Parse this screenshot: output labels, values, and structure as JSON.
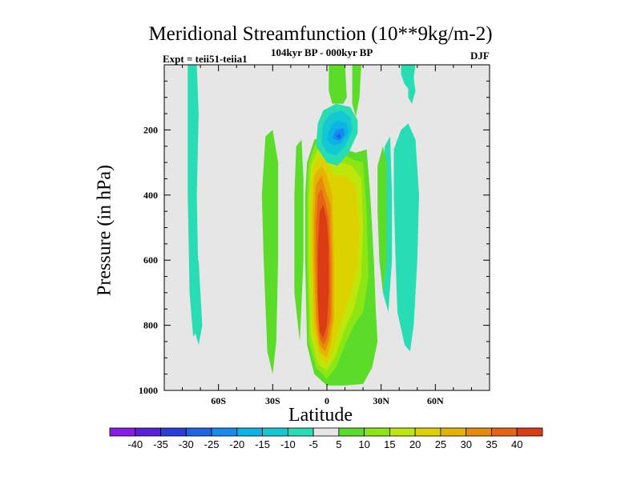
{
  "chart_data": {
    "type": "contour",
    "title": "Meridional Streamfunction (10**9kg/m-2)",
    "subtitle": "104kyr BP - 000kyr BP",
    "experiment": "Expt = teii51-teiia1",
    "season": "DJF",
    "xlabel": "Latitude",
    "ylabel": "Pressure (in hPa)",
    "xlim": [
      -90,
      90
    ],
    "ylim": [
      1000,
      0
    ],
    "x_ticks": [
      {
        "value": -60,
        "label": "60S"
      },
      {
        "value": -30,
        "label": "30S"
      },
      {
        "value": 0,
        "label": "0"
      },
      {
        "value": 30,
        "label": "30N"
      },
      {
        "value": 60,
        "label": "60N"
      }
    ],
    "y_ticks": [
      {
        "value": 200,
        "label": "200"
      },
      {
        "value": 400,
        "label": "400"
      },
      {
        "value": 600,
        "label": "600"
      },
      {
        "value": 800,
        "label": "800"
      },
      {
        "value": 1000,
        "label": "1000"
      }
    ],
    "background_color": "#e6e6e6",
    "colorbar": {
      "levels": [
        "-40",
        "-35",
        "-30",
        "-25",
        "-20",
        "-15",
        "-10",
        "-5",
        "5",
        "10",
        "15",
        "20",
        "25",
        "30",
        "35",
        "40"
      ],
      "colors": [
        "#8a18e6",
        "#5a1edc",
        "#2a3cdc",
        "#1e64e6",
        "#148cf0",
        "#0ab4e6",
        "#14c8d2",
        "#28dcb4",
        "#e6e6e6",
        "#5adc28",
        "#8ce614",
        "#bee60a",
        "#dcd200",
        "#e6b400",
        "#e68c0a",
        "#e66414",
        "#dc3c14"
      ]
    },
    "regions": [
      {
        "name": "southern-high-lat-negative-cell",
        "level": -10,
        "polygon": [
          [
            -77,
            0
          ],
          [
            -72,
            0
          ],
          [
            -71,
            150
          ],
          [
            -72,
            400
          ],
          [
            -71,
            700
          ],
          [
            -72,
            820
          ],
          [
            -74,
            835
          ],
          [
            -76,
            700
          ],
          [
            -77,
            400
          ]
        ]
      },
      {
        "name": "southern-high-lat-negative-tail",
        "level": -10,
        "polygon": [
          [
            -73,
            600
          ],
          [
            -71,
            600
          ],
          [
            -69,
            800
          ],
          [
            -71,
            860
          ],
          [
            -73,
            820
          ]
        ]
      },
      {
        "name": "southern-subtropic-positive-strip",
        "level": 5,
        "polygon": [
          [
            -34,
            220
          ],
          [
            -30,
            200
          ],
          [
            -27,
            300
          ],
          [
            -27,
            600
          ],
          [
            -28,
            850
          ],
          [
            -30,
            950
          ],
          [
            -33,
            880
          ],
          [
            -35,
            600
          ],
          [
            -36,
            400
          ]
        ]
      },
      {
        "name": "southern-subtropic-positive-strip-2",
        "level": 5,
        "polygon": [
          [
            -17,
            250
          ],
          [
            -14,
            230
          ],
          [
            -13,
            350
          ],
          [
            -13,
            600
          ],
          [
            -15,
            850
          ],
          [
            -18,
            700
          ],
          [
            -18,
            400
          ]
        ]
      },
      {
        "name": "hadley-cell",
        "level": 5,
        "polygon": [
          [
            -11,
            300
          ],
          [
            -7,
            230
          ],
          [
            -2,
            220
          ],
          [
            4,
            240
          ],
          [
            10,
            260
          ],
          [
            16,
            270
          ],
          [
            22,
            260
          ],
          [
            24,
            400
          ],
          [
            26,
            600
          ],
          [
            27,
            750
          ],
          [
            28,
            850
          ],
          [
            25,
            930
          ],
          [
            20,
            980
          ],
          [
            10,
            985
          ],
          [
            0,
            985
          ],
          [
            -7,
            950
          ],
          [
            -11,
            860
          ],
          [
            -12,
            600
          ],
          [
            -12,
            400
          ]
        ]
      },
      {
        "name": "hadley-cell",
        "level": 10,
        "polygon": [
          [
            -10,
            300
          ],
          [
            -6,
            240
          ],
          [
            -2,
            230
          ],
          [
            3,
            250
          ],
          [
            8,
            270
          ],
          [
            14,
            290
          ],
          [
            20,
            300
          ],
          [
            22,
            450
          ],
          [
            23,
            650
          ],
          [
            20,
            760
          ],
          [
            15,
            800
          ],
          [
            10,
            860
          ],
          [
            5,
            930
          ],
          [
            0,
            965
          ],
          [
            -6,
            930
          ],
          [
            -10,
            850
          ],
          [
            -11,
            600
          ],
          [
            -11,
            400
          ]
        ]
      },
      {
        "name": "hadley-cell",
        "level": 15,
        "polygon": [
          [
            -9,
            310
          ],
          [
            -5,
            260
          ],
          [
            -1,
            270
          ],
          [
            2,
            300
          ],
          [
            8,
            300
          ],
          [
            14,
            310
          ],
          [
            19,
            350
          ],
          [
            20,
            500
          ],
          [
            19,
            650
          ],
          [
            15,
            750
          ],
          [
            10,
            810
          ],
          [
            5,
            890
          ],
          [
            0,
            940
          ],
          [
            -5,
            920
          ],
          [
            -9,
            830
          ],
          [
            -10,
            600
          ],
          [
            -10,
            420
          ]
        ]
      },
      {
        "name": "hadley-cell",
        "level": 20,
        "polygon": [
          [
            -8,
            320
          ],
          [
            -4,
            280
          ],
          [
            0,
            300
          ],
          [
            4,
            340
          ],
          [
            10,
            340
          ],
          [
            16,
            370
          ],
          [
            18,
            500
          ],
          [
            17,
            620
          ],
          [
            12,
            720
          ],
          [
            7,
            800
          ],
          [
            3,
            880
          ],
          [
            0,
            920
          ],
          [
            -4,
            900
          ],
          [
            -8,
            820
          ],
          [
            -9,
            600
          ],
          [
            -9,
            430
          ]
        ]
      },
      {
        "name": "hadley-cell",
        "level": 25,
        "polygon": [
          [
            -7,
            340
          ],
          [
            -3,
            310
          ],
          [
            0,
            340
          ],
          [
            3,
            400
          ],
          [
            4,
            600
          ],
          [
            4,
            780
          ],
          [
            2,
            860
          ],
          [
            0,
            900
          ],
          [
            -4,
            880
          ],
          [
            -7,
            800
          ],
          [
            -8,
            600
          ],
          [
            -8,
            450
          ]
        ]
      },
      {
        "name": "hadley-cell",
        "level": 30,
        "polygon": [
          [
            -6,
            370
          ],
          [
            -3,
            340
          ],
          [
            -1,
            380
          ],
          [
            2,
            430
          ],
          [
            3,
            600
          ],
          [
            3,
            780
          ],
          [
            1,
            850
          ],
          [
            -1,
            880
          ],
          [
            -4,
            860
          ],
          [
            -6,
            790
          ],
          [
            -7,
            600
          ],
          [
            -7,
            470
          ]
        ]
      },
      {
        "name": "hadley-cell",
        "level": 35,
        "polygon": [
          [
            -5,
            400
          ],
          [
            -3,
            380
          ],
          [
            -1,
            420
          ],
          [
            1,
            470
          ],
          [
            2,
            600
          ],
          [
            2,
            770
          ],
          [
            0,
            840
          ],
          [
            -2,
            860
          ],
          [
            -4,
            840
          ],
          [
            -5,
            780
          ],
          [
            -6,
            600
          ],
          [
            -6,
            490
          ]
        ]
      },
      {
        "name": "hadley-cell-core",
        "level": 40,
        "polygon": [
          [
            -4,
            450
          ],
          [
            -2,
            430
          ],
          [
            0,
            480
          ],
          [
            1,
            560
          ],
          [
            1,
            700
          ],
          [
            0,
            800
          ],
          [
            -2,
            840
          ],
          [
            -4,
            820
          ],
          [
            -5,
            720
          ],
          [
            -5,
            560
          ]
        ]
      },
      {
        "name": "northern-upper-negative-cell",
        "level": -10,
        "polygon": [
          [
            -6,
            250
          ],
          [
            -5,
            180
          ],
          [
            -2,
            140
          ],
          [
            5,
            120
          ],
          [
            13,
            130
          ],
          [
            17,
            170
          ],
          [
            17,
            210
          ],
          [
            12,
            270
          ],
          [
            6,
            310
          ],
          [
            0,
            300
          ]
        ]
      },
      {
        "name": "northern-upper-negative-cell",
        "level": -15,
        "polygon": [
          [
            -3,
            240
          ],
          [
            -2,
            180
          ],
          [
            2,
            150
          ],
          [
            8,
            140
          ],
          [
            13,
            160
          ],
          [
            14,
            200
          ],
          [
            10,
            250
          ],
          [
            5,
            280
          ],
          [
            0,
            270
          ]
        ]
      },
      {
        "name": "northern-upper-negative-cell",
        "level": -20,
        "polygon": [
          [
            0,
            230
          ],
          [
            2,
            190
          ],
          [
            6,
            170
          ],
          [
            11,
            180
          ],
          [
            12,
            210
          ],
          [
            8,
            240
          ],
          [
            4,
            250
          ]
        ]
      },
      {
        "name": "northern-upper-negative-cell",
        "level": -25,
        "polygon": [
          [
            3,
            225
          ],
          [
            5,
            200
          ],
          [
            9,
            195
          ],
          [
            10,
            215
          ],
          [
            7,
            235
          ]
        ]
      },
      {
        "name": "northern-upper-negative-core",
        "level": -30,
        "polygon": [
          [
            5,
            220
          ],
          [
            7,
            210
          ],
          [
            8,
            220
          ],
          [
            7,
            228
          ]
        ]
      },
      {
        "name": "upper-positive-cap",
        "level": 5,
        "polygon": [
          [
            1,
            0
          ],
          [
            10,
            0
          ],
          [
            11,
            100
          ],
          [
            9,
            120
          ],
          [
            3,
            120
          ],
          [
            1,
            80
          ]
        ]
      },
      {
        "name": "upper-positive-strip",
        "level": 5,
        "polygon": [
          [
            14,
            0
          ],
          [
            19,
            0
          ],
          [
            18,
            100
          ],
          [
            16,
            160
          ],
          [
            14,
            120
          ]
        ]
      },
      {
        "name": "northern-mid-lat-negative-cell",
        "level": -10,
        "polygon": [
          [
            37,
            260
          ],
          [
            41,
            200
          ],
          [
            45,
            180
          ],
          [
            49,
            230
          ],
          [
            51,
            400
          ],
          [
            50,
            600
          ],
          [
            48,
            800
          ],
          [
            46,
            880
          ],
          [
            43,
            860
          ],
          [
            39,
            760
          ],
          [
            38,
            600
          ],
          [
            37,
            400
          ]
        ]
      },
      {
        "name": "northern-subtropic-negative-strip",
        "level": -10,
        "polygon": [
          [
            32,
            250
          ],
          [
            35,
            220
          ],
          [
            36,
            400
          ],
          [
            36,
            600
          ],
          [
            34,
            760
          ],
          [
            31,
            700
          ],
          [
            30,
            500
          ],
          [
            31,
            330
          ]
        ]
      },
      {
        "name": "northern-mid-lat-positive-strip",
        "level": 5,
        "polygon": [
          [
            28,
            310
          ],
          [
            31,
            250
          ],
          [
            33,
            300
          ],
          [
            33,
            600
          ],
          [
            31,
            700
          ],
          [
            29,
            600
          ],
          [
            28,
            450
          ]
        ]
      },
      {
        "name": "northern-high-upper-negative-strip",
        "level": -10,
        "polygon": [
          [
            41,
            0
          ],
          [
            49,
            0
          ],
          [
            48,
            40
          ],
          [
            46,
            80
          ],
          [
            43,
            60
          ],
          [
            41,
            30
          ]
        ]
      },
      {
        "name": "northern-high-upper-negative-strip-2",
        "level": -10,
        "polygon": [
          [
            45,
            40
          ],
          [
            48,
            40
          ],
          [
            49,
            80
          ],
          [
            47,
            120
          ],
          [
            45,
            100
          ]
        ]
      }
    ]
  }
}
